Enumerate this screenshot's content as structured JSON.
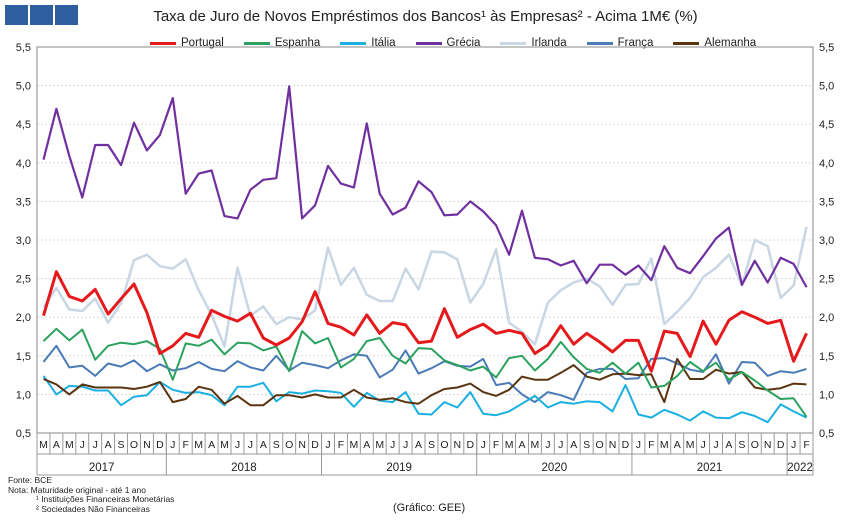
{
  "header": {
    "title": "Taxa de Juro de Novos Empréstimos dos Bancos¹ às Empresas² - Acima 1M€ (%)"
  },
  "footer": {
    "source": "Fonte: BCE",
    "note": "Nota: Maturidade original - até 1 ano",
    "footnote1": "¹ Instituições Financeiras Monetárias",
    "footnote2": "² Sociedades Não Financeiras",
    "credit": "(Gráfico: GEE)"
  },
  "chart_data": {
    "type": "line",
    "title": "Taxa de Juro de Novos Empréstimos dos Bancos¹ às Empresas² - Acima 1M€ (%)",
    "ylim": [
      0.5,
      5.5
    ],
    "yticks": [
      "0,5",
      "1,0",
      "1,5",
      "2,0",
      "2,5",
      "3,0",
      "3,5",
      "4,0",
      "4,5",
      "5,0",
      "5,5"
    ],
    "grid": true,
    "legend_position": "top",
    "month_labels": [
      "M",
      "A",
      "M",
      "J",
      "J",
      "A",
      "S",
      "O",
      "N",
      "D",
      "J",
      "F",
      "M",
      "A",
      "M",
      "J",
      "J",
      "A",
      "S",
      "O",
      "N",
      "D",
      "J",
      "F",
      "M",
      "A",
      "M",
      "J",
      "J",
      "A",
      "S",
      "O",
      "N",
      "D",
      "J",
      "F",
      "M",
      "A",
      "M",
      "J",
      "J",
      "A",
      "S",
      "O",
      "N",
      "D",
      "J",
      "F",
      "M",
      "A",
      "M",
      "J",
      "J",
      "A",
      "S",
      "O",
      "N",
      "D",
      "J",
      "F"
    ],
    "years": [
      {
        "label": "2017",
        "start": 0,
        "end": 10
      },
      {
        "label": "2018",
        "start": 10,
        "end": 22
      },
      {
        "label": "2019",
        "start": 22,
        "end": 34
      },
      {
        "label": "2020",
        "start": 34,
        "end": 46
      },
      {
        "label": "2021",
        "start": 46,
        "end": 58
      },
      {
        "label": "2022",
        "start": 58,
        "end": 60
      }
    ],
    "series": [
      {
        "name": "Portugal",
        "color": "#e41a1c",
        "width": 3,
        "values": [
          2.02,
          2.59,
          2.27,
          2.21,
          2.36,
          2.04,
          2.24,
          2.43,
          2.06,
          1.53,
          1.63,
          1.79,
          1.74,
          2.09,
          2.01,
          1.95,
          2.05,
          1.73,
          1.64,
          1.73,
          1.94,
          2.33,
          1.92,
          1.87,
          1.77,
          2.03,
          1.79,
          1.93,
          1.9,
          1.67,
          1.69,
          2.11,
          1.74,
          1.84,
          1.91,
          1.79,
          1.83,
          1.79,
          1.53,
          1.64,
          1.89,
          1.65,
          1.79,
          1.68,
          1.55,
          1.7,
          1.7,
          1.3,
          1.82,
          1.79,
          1.49,
          1.95,
          1.65,
          1.96,
          2.07,
          2.0,
          1.92,
          1.96,
          1.43,
          1.79
        ]
      },
      {
        "name": "Espanha",
        "color": "#2ca25f",
        "width": 2,
        "values": [
          1.69,
          1.85,
          1.7,
          1.84,
          1.45,
          1.63,
          1.67,
          1.65,
          1.69,
          1.59,
          1.19,
          1.66,
          1.63,
          1.71,
          1.52,
          1.67,
          1.66,
          1.57,
          1.62,
          1.3,
          1.82,
          1.66,
          1.73,
          1.35,
          1.46,
          1.69,
          1.73,
          1.5,
          1.4,
          1.6,
          1.59,
          1.44,
          1.38,
          1.31,
          1.36,
          1.22,
          1.47,
          1.5,
          1.31,
          1.46,
          1.68,
          1.48,
          1.33,
          1.28,
          1.41,
          1.27,
          1.41,
          1.09,
          1.11,
          1.24,
          1.42,
          1.3,
          1.41,
          1.19,
          1.29,
          1.18,
          1.05,
          0.94,
          0.95,
          0.71
        ]
      },
      {
        "name": "Itália",
        "color": "#1ab0e0",
        "width": 2,
        "values": [
          1.24,
          1.0,
          1.11,
          1.1,
          1.05,
          1.05,
          0.86,
          0.97,
          0.99,
          1.16,
          1.06,
          1.02,
          1.03,
          0.99,
          0.86,
          1.1,
          1.1,
          1.15,
          0.91,
          1.03,
          1.01,
          1.05,
          1.04,
          1.02,
          0.84,
          1.02,
          0.92,
          0.9,
          1.03,
          0.75,
          0.74,
          0.9,
          0.83,
          1.03,
          0.75,
          0.73,
          0.78,
          0.88,
          0.98,
          0.83,
          0.9,
          0.88,
          0.91,
          0.9,
          0.78,
          1.12,
          0.74,
          0.7,
          0.8,
          0.74,
          0.66,
          0.78,
          0.7,
          0.69,
          0.77,
          0.72,
          0.64,
          0.87,
          0.78,
          0.7
        ]
      },
      {
        "name": "Grécia",
        "color": "#7030a0",
        "width": 2.2,
        "values": [
          4.04,
          4.7,
          4.09,
          3.55,
          4.23,
          4.23,
          3.97,
          4.52,
          4.16,
          4.36,
          4.84,
          3.6,
          3.86,
          3.9,
          3.31,
          3.28,
          3.65,
          3.78,
          3.8,
          4.99,
          3.28,
          3.45,
          3.96,
          3.73,
          3.68,
          4.51,
          3.6,
          3.33,
          3.42,
          3.76,
          3.62,
          3.32,
          3.33,
          3.5,
          3.37,
          3.19,
          2.81,
          3.38,
          2.77,
          2.75,
          2.67,
          2.73,
          2.44,
          2.68,
          2.68,
          2.55,
          2.67,
          2.48,
          2.92,
          2.64,
          2.57,
          2.79,
          3.02,
          3.16,
          2.42,
          2.73,
          2.45,
          2.77,
          2.69,
          2.39
        ]
      },
      {
        "name": "Irlanda",
        "color": "#c9d6e3",
        "width": 2.5,
        "values": [
          2.13,
          2.38,
          2.1,
          2.08,
          2.24,
          1.93,
          2.18,
          2.74,
          2.81,
          2.66,
          2.63,
          2.75,
          2.35,
          2.03,
          1.62,
          2.64,
          2.02,
          2.14,
          1.91,
          2.0,
          1.97,
          2.09,
          2.9,
          2.42,
          2.64,
          2.29,
          2.21,
          2.21,
          2.63,
          2.36,
          2.85,
          2.84,
          2.75,
          2.19,
          2.43,
          2.88,
          1.93,
          1.81,
          1.65,
          2.19,
          2.35,
          2.45,
          2.5,
          2.4,
          2.16,
          2.42,
          2.43,
          2.76,
          1.91,
          2.07,
          2.25,
          2.52,
          2.64,
          2.81,
          2.41,
          3.0,
          2.92,
          2.25,
          2.41,
          3.17
        ]
      },
      {
        "name": "França",
        "color": "#4a7bb7",
        "width": 2,
        "values": [
          1.42,
          1.63,
          1.35,
          1.37,
          1.24,
          1.4,
          1.36,
          1.44,
          1.3,
          1.39,
          1.31,
          1.34,
          1.42,
          1.33,
          1.3,
          1.43,
          1.35,
          1.31,
          1.5,
          1.31,
          1.41,
          1.38,
          1.34,
          1.44,
          1.52,
          1.5,
          1.22,
          1.32,
          1.57,
          1.27,
          1.34,
          1.43,
          1.37,
          1.36,
          1.46,
          1.12,
          1.15,
          1.0,
          0.9,
          1.03,
          0.99,
          0.93,
          1.28,
          1.33,
          1.33,
          1.2,
          1.21,
          1.46,
          1.47,
          1.4,
          1.32,
          1.29,
          1.52,
          1.14,
          1.42,
          1.41,
          1.24,
          1.3,
          1.28,
          1.33
        ]
      },
      {
        "name": "Alemanha",
        "color": "#5a3410",
        "width": 2,
        "values": [
          1.2,
          1.13,
          1.0,
          1.13,
          1.09,
          1.09,
          1.09,
          1.07,
          1.1,
          1.16,
          0.9,
          0.94,
          1.1,
          1.06,
          0.88,
          0.98,
          0.86,
          0.86,
          0.99,
          0.99,
          0.96,
          1.0,
          0.96,
          0.96,
          1.06,
          0.96,
          0.93,
          0.95,
          0.9,
          0.88,
          0.99,
          1.07,
          1.09,
          1.14,
          1.03,
          0.98,
          1.06,
          1.23,
          1.19,
          1.19,
          1.28,
          1.38,
          1.23,
          1.19,
          1.26,
          1.27,
          1.25,
          1.26,
          0.9,
          1.46,
          1.2,
          1.2,
          1.32,
          1.27,
          1.29,
          1.09,
          1.06,
          1.08,
          1.14,
          1.13
        ]
      }
    ]
  }
}
